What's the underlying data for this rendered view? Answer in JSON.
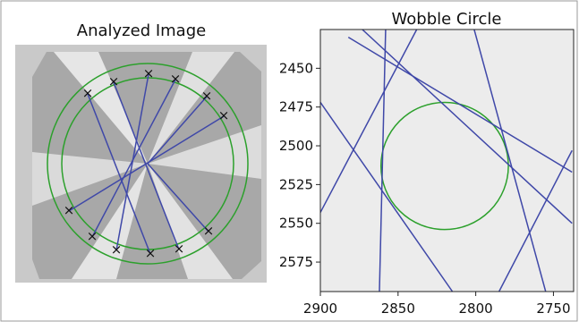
{
  "chart_data": [
    {
      "type": "image",
      "title": "Analyzed Image"
    },
    {
      "type": "line",
      "title": "Wobble Circle",
      "xlim": [
        2900,
        2737
      ],
      "ylim": [
        2594,
        2425
      ],
      "xticks": [
        2900,
        2850,
        2800,
        2750
      ],
      "yticks": [
        2450,
        2475,
        2500,
        2525,
        2550,
        2575
      ],
      "line_color": "#3f48a8",
      "lines": [
        {
          "x": [
            2882,
            2738
          ],
          "y": [
            2430,
            2517
          ]
        },
        {
          "x": [
            2900,
            2815
          ],
          "y": [
            2472,
            2594
          ]
        },
        {
          "x": [
            2900,
            2838
          ],
          "y": [
            2543,
            2425
          ]
        },
        {
          "x": [
            2858,
            2862
          ],
          "y": [
            2425,
            2594
          ]
        },
        {
          "x": [
            2873,
            2738
          ],
          "y": [
            2425,
            2550
          ]
        },
        {
          "x": [
            2801,
            2755
          ],
          "y": [
            2425,
            2594
          ]
        },
        {
          "x": [
            2785,
            2738
          ],
          "y": [
            2594,
            2503
          ]
        }
      ],
      "circle": {
        "x": 2820,
        "y": 2513,
        "r": 41,
        "color": "#2ca02c"
      }
    }
  ]
}
